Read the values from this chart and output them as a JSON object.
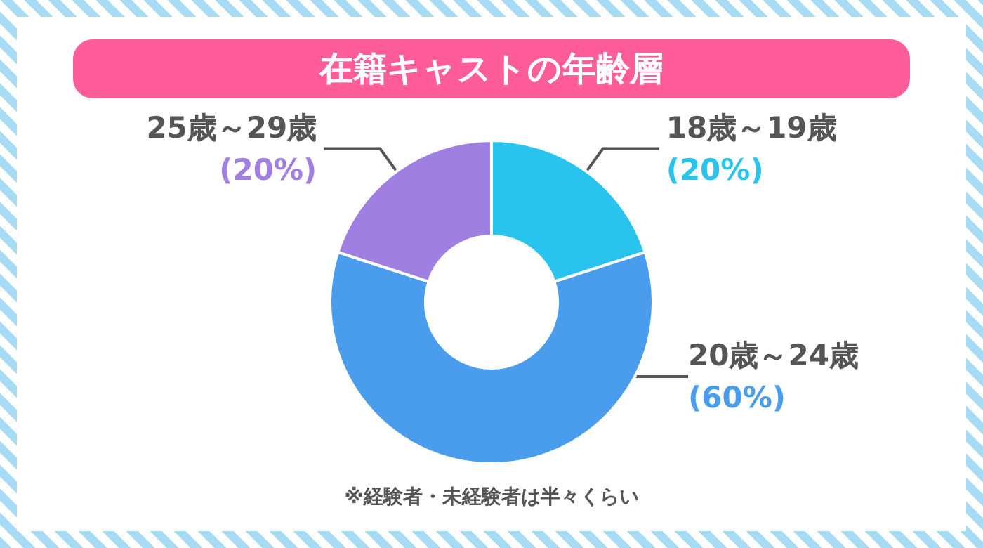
{
  "chart_data": {
    "type": "donut",
    "title": "在籍キャストの年齢層",
    "categories": [
      "18歳～19歳",
      "20歳～24歳",
      "25歳～29歳"
    ],
    "values": [
      20,
      60,
      20
    ],
    "colors": [
      "#29c4ee",
      "#4a9cec",
      "#a07fe2"
    ],
    "value_labels": [
      "(20%)",
      "(60%)",
      "(20%)"
    ],
    "annotations": [
      "※経験者・未経験者は半々くらい"
    ],
    "legend": false
  }
}
